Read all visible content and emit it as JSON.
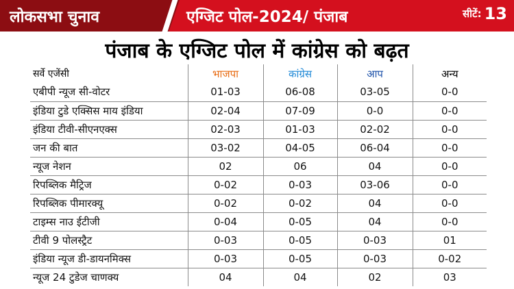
{
  "header": {
    "left_label": "लोकसभा चुनाव",
    "mid_label": "एग्जिट पोल-2024/ पंजाब",
    "seats_label": "सीटें:",
    "seats_count": "13"
  },
  "title": "पंजाब के एग्जिट पोल में कांग्रेस को बढ़त",
  "table": {
    "columns": [
      "सर्वे एजेंसी",
      "भाजपा",
      "कांग्रेस",
      "आप",
      "अन्य"
    ],
    "rows": [
      [
        "एबीपी न्यूज सी-वोटर",
        "01-03",
        "06-08",
        "03-05",
        "0-0"
      ],
      [
        "इंडिया टुडे एक्सिस माय इंडिया",
        "02-04",
        "07-09",
        "0-0",
        "0-0"
      ],
      [
        "इंडिया टीवी-सीएनएक्स",
        "02-03",
        "01-03",
        "02-02",
        "0-0"
      ],
      [
        "जन की बात",
        "03-02",
        "04-05",
        "06-04",
        "0-0"
      ],
      [
        "न्यूज नेशन",
        "02",
        "06",
        "04",
        "0-0"
      ],
      [
        "रिपब्लिक मैट्रिज",
        "0-02",
        "0-03",
        "03-06",
        "0-0"
      ],
      [
        "रिपब्लिक पीमारक्यू",
        "0-02",
        "0-02",
        "04",
        "0-0"
      ],
      [
        "टाइम्स नाउ ईटीजी",
        "0-04",
        "0-05",
        "04",
        "0-0"
      ],
      [
        "टीवी 9 पोलस्ट्रैट",
        "0-03",
        "0-05",
        "0-03",
        "01"
      ],
      [
        "इंडिया न्यूज डी-डायनमिक्स",
        "0-03",
        "0-05",
        "0-03",
        "0-02"
      ],
      [
        "न्यूज 24 टुडेज चाणक्य",
        "04",
        "04",
        "02",
        "03"
      ]
    ]
  },
  "colors": {
    "header_red": "#d4101e",
    "header_dark": "#8c0d12",
    "bjp": "#e86a10",
    "congress": "#1e88d6",
    "aap": "#1a4fa8"
  }
}
